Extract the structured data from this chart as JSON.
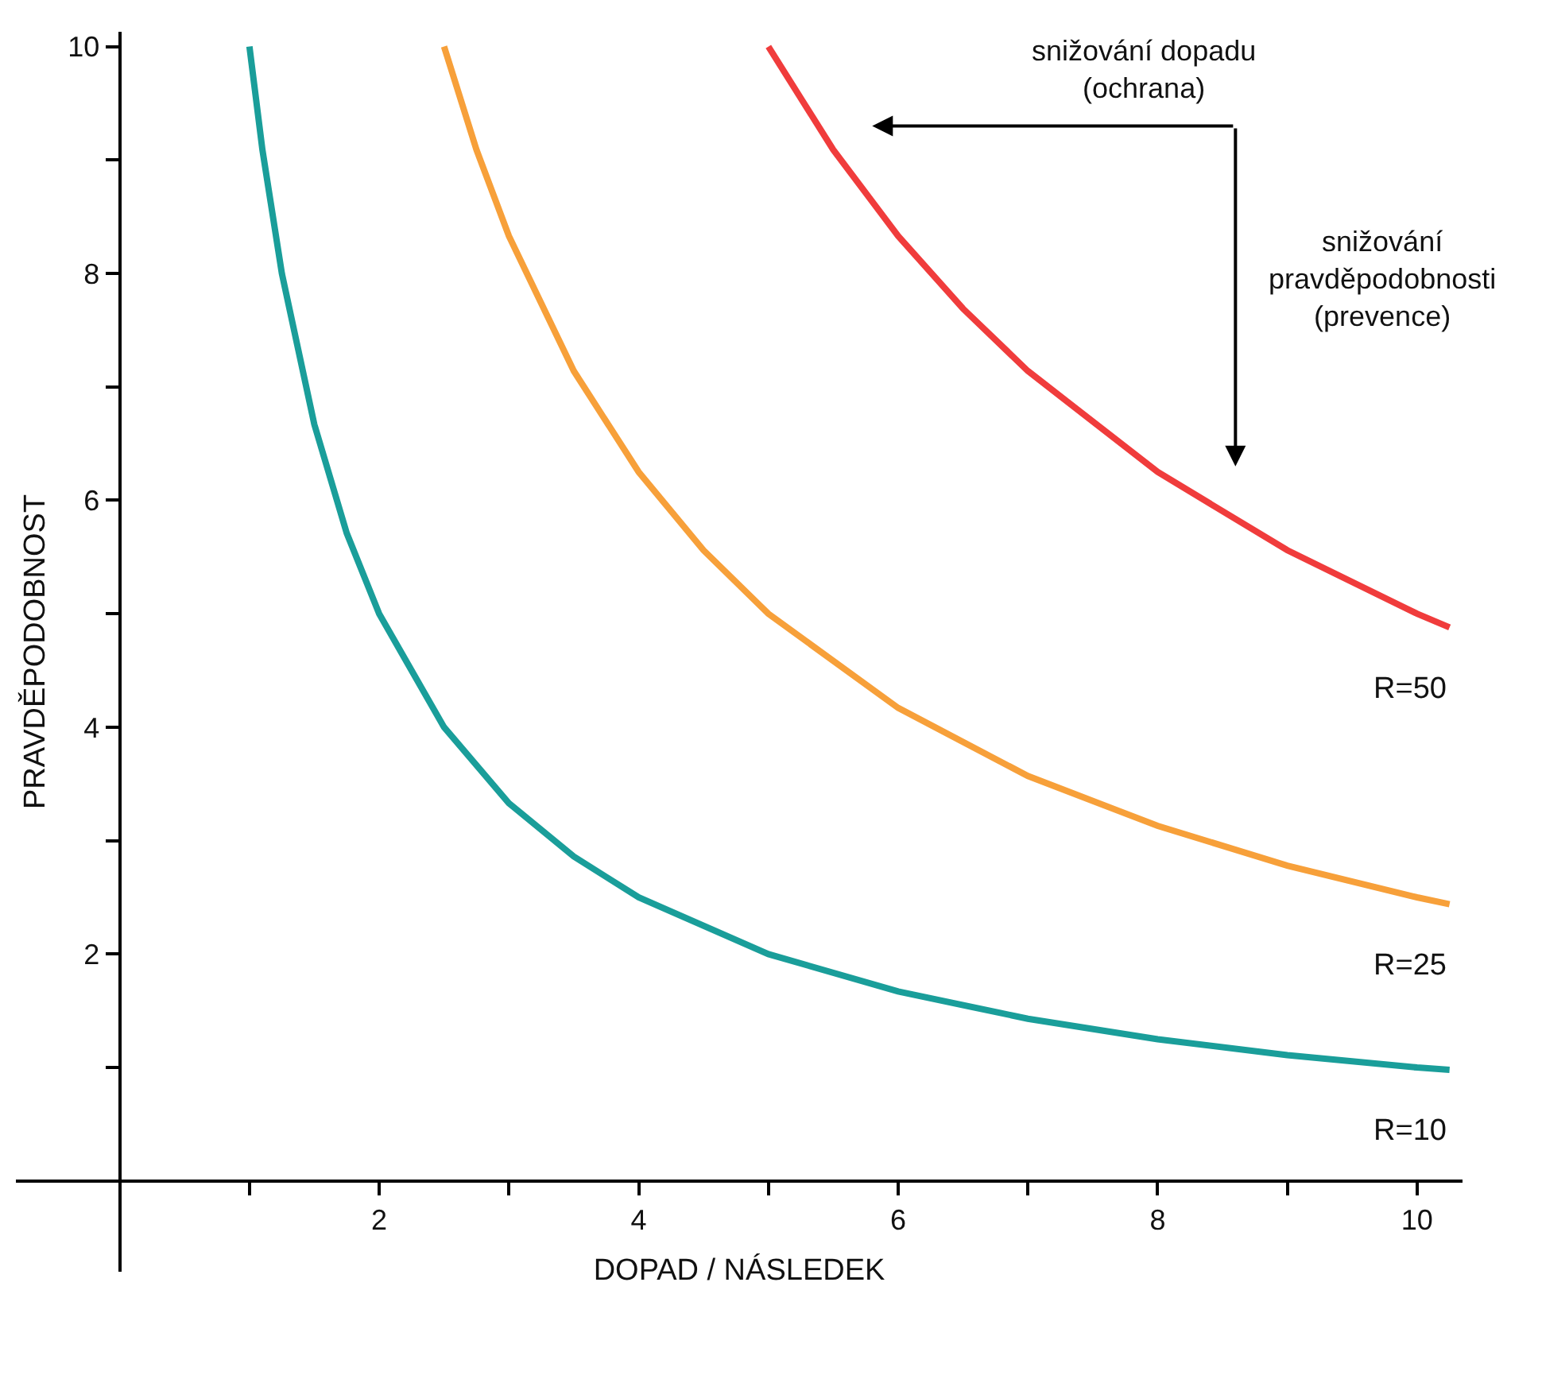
{
  "chart_data": {
    "type": "line",
    "xlabel": "DOPAD / NÁSLEDEK",
    "ylabel": "PRAVDĚPODOBNOST",
    "xlim": [
      -0.8,
      10.35
    ],
    "ylim": [
      -0.8,
      10.13
    ],
    "xticks": [
      {
        "value": 1,
        "label": null
      },
      2,
      {
        "value": 3,
        "label": null
      },
      4,
      {
        "value": 5,
        "label": null
      },
      6,
      {
        "value": 7,
        "label": null
      },
      8,
      {
        "value": 9,
        "label": null
      },
      10
    ],
    "yticks": [
      {
        "value": 1,
        "label": null
      },
      2,
      {
        "value": 3,
        "label": null
      },
      4,
      {
        "value": 5,
        "label": null
      },
      6,
      {
        "value": 7,
        "label": null
      },
      8,
      {
        "value": 9,
        "label": null
      },
      10
    ],
    "grid": false,
    "legend": false,
    "marker": "none",
    "line_style": "solid",
    "series": [
      {
        "name": "R=10",
        "color": "#1a9e9a",
        "x": [
          1,
          1.1,
          1.25,
          1.5,
          1.75,
          2,
          2.5,
          3,
          3.5,
          4,
          5,
          6,
          7,
          8,
          9,
          10,
          10.25
        ],
        "values": [
          10,
          9.09,
          8,
          6.67,
          5.71,
          5,
          4,
          3.33,
          2.86,
          2.5,
          2,
          1.67,
          1.43,
          1.25,
          1.11,
          1,
          0.98
        ]
      },
      {
        "name": "R=25",
        "color": "#f7a03a",
        "x": [
          2.5,
          2.75,
          3,
          3.5,
          4,
          4.5,
          5,
          6,
          7,
          8,
          9,
          10,
          10.25
        ],
        "values": [
          10,
          9.09,
          8.33,
          7.14,
          6.25,
          5.56,
          5,
          4.17,
          3.57,
          3.13,
          2.78,
          2.5,
          2.44
        ]
      },
      {
        "name": "R=50",
        "color": "#f03c3c",
        "x": [
          5,
          5.5,
          6,
          6.5,
          7,
          8,
          9,
          10,
          10.25
        ],
        "values": [
          10,
          9.09,
          8.33,
          7.69,
          7.14,
          6.25,
          5.56,
          5,
          4.88
        ]
      }
    ],
    "annotations": [
      "snižování dopadu\n(ochrana)",
      "snižování\npravděpodobnosti\n(prevence)"
    ]
  }
}
